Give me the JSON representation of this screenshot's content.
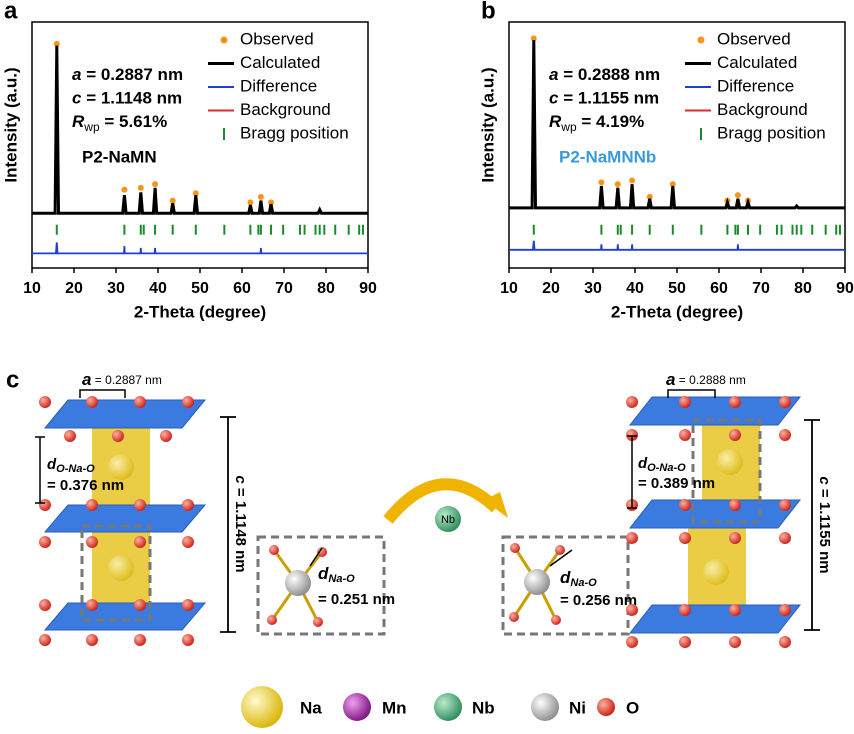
{
  "chart_data": [
    {
      "type": "line",
      "panel_label": "a",
      "sample_label": "P2-NaMN",
      "sample_color": "#000000",
      "xlabel": "2-Theta (degree)",
      "ylabel": "Intensity (a.u.)",
      "xlim": [
        10,
        90
      ],
      "xticks": [
        10,
        20,
        30,
        40,
        50,
        60,
        70,
        80,
        90
      ],
      "ylim": [
        -30,
        105
      ],
      "lattice": [
        {
          "symbol": "a",
          "text": " = 0.2887 nm"
        },
        {
          "symbol": "c",
          "text": " = 1.1148 nm"
        },
        {
          "symbol": "R",
          "sub": "wp",
          "text": " = 5.61%"
        }
      ],
      "series": [
        {
          "name": "Observed",
          "color": "#f7941d",
          "marker": "dot",
          "x": [
            15.9,
            32.0,
            35.9,
            39.3,
            43.5,
            49.0,
            62.0,
            64.5,
            66.9
          ],
          "values": [
            93,
            13,
            14,
            16,
            7,
            11,
            6,
            9,
            6
          ]
        },
        {
          "name": "Calculated",
          "color": "#000000",
          "marker": "line",
          "x": [
            10,
            15.5,
            15.9,
            16.3,
            31.6,
            32.0,
            32.4,
            35.5,
            35.9,
            36.3,
            38.9,
            39.3,
            39.7,
            43.1,
            43.5,
            43.9,
            48.6,
            49.0,
            49.4,
            61.6,
            62.0,
            62.4,
            64.1,
            64.5,
            64.9,
            66.5,
            66.9,
            67.3,
            78.1,
            78.5,
            78.9,
            90
          ],
          "values": [
            0,
            0,
            92,
            0,
            0,
            10,
            0,
            0,
            11.5,
            0,
            0,
            14,
            0,
            0,
            5.5,
            0,
            0,
            10,
            0,
            0,
            4.5,
            0,
            0,
            7,
            0,
            0,
            5,
            0,
            0,
            2,
            0,
            0
          ]
        },
        {
          "name": "Difference",
          "color": "#1f3fd1",
          "marker": "line",
          "x": [
            10,
            15.7,
            15.9,
            16.1,
            31.9,
            32.0,
            32.1,
            35.8,
            35.9,
            36.0,
            39.2,
            39.3,
            39.4,
            64.4,
            64.5,
            64.6,
            90
          ],
          "values": [
            -22,
            -22,
            -16,
            -22,
            -22,
            -18,
            -22,
            -22,
            -19,
            -22,
            -22,
            -19,
            -22,
            -22,
            -19,
            -22,
            -22
          ]
        },
        {
          "name": "Background",
          "color": "#e3262a",
          "marker": "line",
          "x": [
            10,
            90
          ],
          "values": [
            0,
            0
          ]
        },
        {
          "name": "Bragg position",
          "color": "#1a8a2a",
          "marker": "tick",
          "x": [
            15.9,
            32.0,
            35.9,
            36.6,
            39.3,
            43.5,
            49.0,
            55.8,
            62.0,
            63.9,
            64.5,
            66.9,
            69.8,
            73.8,
            74.9,
            77.5,
            78.5,
            79.6,
            82.2,
            85.4,
            87.9,
            88.8
          ],
          "values": [
            -9,
            -9,
            -9,
            -9,
            -9,
            -9,
            -9,
            -9,
            -9,
            -9,
            -9,
            -9,
            -9,
            -9,
            -9,
            -9,
            -9,
            -9,
            -9,
            -9,
            -9,
            -9
          ]
        }
      ]
    },
    {
      "type": "line",
      "panel_label": "b",
      "sample_label": "P2-NaMNNb",
      "sample_color": "#3a9ad9",
      "xlabel": "2-Theta (degree)",
      "ylabel": "Intensity (a.u.)",
      "xlim": [
        10,
        90
      ],
      "xticks": [
        10,
        20,
        30,
        40,
        50,
        60,
        70,
        80,
        90
      ],
      "ylim": [
        -30,
        105
      ],
      "lattice": [
        {
          "symbol": "a",
          "text": " = 0.2888 nm"
        },
        {
          "symbol": "c",
          "text": " = 1.1155 nm"
        },
        {
          "symbol": "R",
          "sub": "wp",
          "text": " = 4.19%"
        }
      ],
      "series": [
        {
          "name": "Observed",
          "color": "#f7941d",
          "marker": "dot",
          "x": [
            15.9,
            32.0,
            35.9,
            39.3,
            43.5,
            49.0,
            62.0,
            64.5,
            66.9
          ],
          "values": [
            96,
            17,
            16,
            18,
            9,
            16,
            7,
            10,
            7
          ]
        },
        {
          "name": "Calculated",
          "color": "#000000",
          "marker": "line",
          "x": [
            10,
            15.5,
            15.9,
            16.3,
            31.6,
            32.0,
            32.4,
            35.5,
            35.9,
            36.3,
            38.9,
            39.3,
            39.7,
            43.1,
            43.5,
            43.9,
            48.6,
            49.0,
            49.4,
            61.6,
            62.0,
            62.4,
            64.1,
            64.5,
            64.9,
            66.5,
            66.9,
            67.3,
            78.1,
            78.5,
            78.9,
            90
          ],
          "values": [
            3,
            3,
            95,
            3,
            3,
            15,
            3,
            3,
            14,
            3,
            3,
            16,
            3,
            3,
            8,
            3,
            3,
            15,
            3,
            3,
            6,
            3,
            3,
            8,
            3,
            3,
            6,
            3,
            3,
            4,
            3,
            3
          ]
        },
        {
          "name": "Difference",
          "color": "#1f3fd1",
          "marker": "line",
          "x": [
            10,
            15.7,
            15.9,
            16.1,
            31.9,
            32.0,
            32.1,
            35.8,
            35.9,
            36.0,
            39.2,
            39.3,
            39.4,
            64.4,
            64.5,
            64.6,
            90
          ],
          "values": [
            -20,
            -20,
            -15,
            -20,
            -20,
            -17,
            -20,
            -20,
            -17,
            -20,
            -20,
            -17,
            -20,
            -20,
            -17,
            -20,
            -20
          ]
        },
        {
          "name": "Background",
          "color": "#e3262a",
          "marker": "line",
          "x": [
            10,
            90
          ],
          "values": [
            3,
            3
          ]
        },
        {
          "name": "Bragg position",
          "color": "#1a8a2a",
          "marker": "tick",
          "x": [
            15.9,
            32.0,
            35.9,
            36.6,
            39.3,
            43.5,
            49.0,
            55.8,
            62.0,
            63.9,
            64.5,
            66.9,
            69.8,
            73.8,
            74.9,
            77.5,
            78.5,
            79.6,
            82.2,
            85.4,
            87.9,
            88.8
          ],
          "values": [
            -9,
            -9,
            -9,
            -9,
            -9,
            -9,
            -9,
            -9,
            -9,
            -9,
            -9,
            -9,
            -9,
            -9,
            -9,
            -9,
            -9,
            -9,
            -9,
            -9,
            -9,
            -9
          ]
        }
      ]
    }
  ],
  "structure": {
    "panel_label": "c",
    "left": {
      "a_symbol": "a",
      "a_value": " = 0.2887 nm",
      "d_symbol": "d",
      "d_sub": "O-Na-O",
      "d_value": "= 0.376 nm",
      "c_symbol": "c",
      "c_value": " = 1.1148 nm",
      "nao_symbol": "d",
      "nao_sub": "Na-O",
      "nao_value": "= 0.251 nm"
    },
    "right": {
      "a_symbol": "a",
      "a_value": " = 0.2888 nm",
      "d_symbol": "d",
      "d_sub": "O-Na-O",
      "d_value": "= 0.389 nm",
      "c_symbol": "c",
      "c_value": " = 1.1155 nm",
      "nao_symbol": "d",
      "nao_sub": "Na-O",
      "nao_value": "= 0.256 nm"
    },
    "dopant": "Nb",
    "legend": [
      "Na",
      "Mn",
      "Nb",
      "Ni",
      "O"
    ]
  }
}
